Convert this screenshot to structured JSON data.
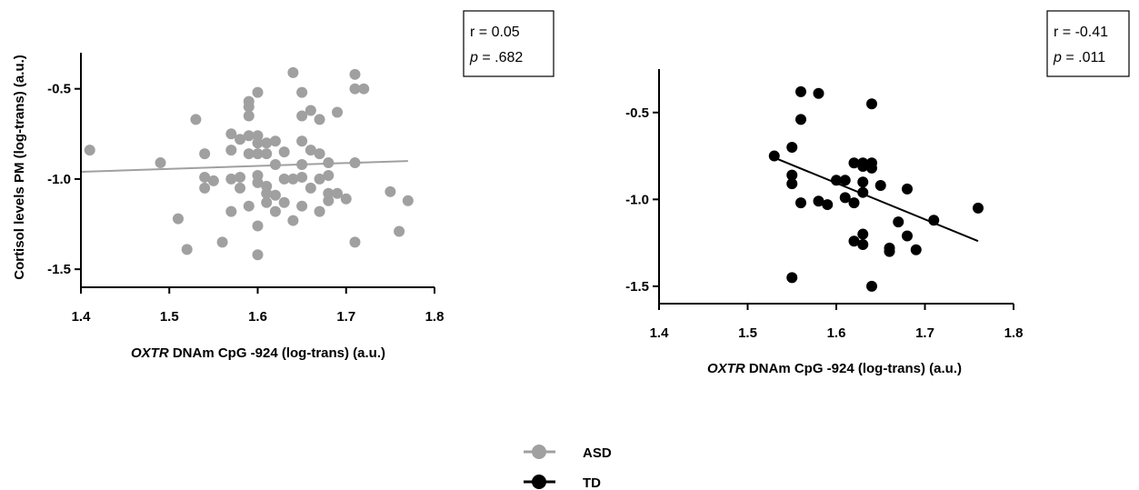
{
  "chart_data": [
    {
      "type": "scatter",
      "panel": "left",
      "xlabel_italic": "OXTR",
      "xlabel_rest": " DNAm CpG -924 (log-trans) (a.u.)",
      "ylabel": "Cortisol levels PM (log-trans) (a.u.)",
      "xlim": [
        1.4,
        1.8
      ],
      "ylim": [
        -1.6,
        -0.3
      ],
      "xticks": [
        "1.4",
        "1.5",
        "1.6",
        "1.7",
        "1.8"
      ],
      "yticks": [
        "-0.5",
        "-1.0",
        "-1.5"
      ],
      "ytick_values": [
        -0.5,
        -1.0,
        -1.5
      ],
      "xtick_values": [
        1.4,
        1.5,
        1.6,
        1.7,
        1.8
      ],
      "stats": {
        "r_text": "r = 0.05",
        "p_label": "p",
        "p_value": " = .682"
      },
      "series": [
        {
          "name": "ASD",
          "color": "#a0a0a0",
          "fit": {
            "x": [
              1.4,
              1.77
            ],
            "y": [
              -0.96,
              -0.9
            ]
          },
          "points": [
            [
              1.41,
              -0.84
            ],
            [
              1.49,
              -0.91
            ],
            [
              1.51,
              -1.22
            ],
            [
              1.52,
              -1.39
            ],
            [
              1.53,
              -0.67
            ],
            [
              1.54,
              -0.86
            ],
            [
              1.54,
              -0.99
            ],
            [
              1.54,
              -1.05
            ],
            [
              1.55,
              -1.01
            ],
            [
              1.56,
              -1.35
            ],
            [
              1.57,
              -0.75
            ],
            [
              1.57,
              -0.84
            ],
            [
              1.57,
              -1.0
            ],
            [
              1.57,
              -1.18
            ],
            [
              1.58,
              -0.78
            ],
            [
              1.58,
              -0.99
            ],
            [
              1.58,
              -1.05
            ],
            [
              1.59,
              -0.57
            ],
            [
              1.59,
              -0.6
            ],
            [
              1.59,
              -0.65
            ],
            [
              1.59,
              -0.76
            ],
            [
              1.59,
              -0.86
            ],
            [
              1.59,
              -1.15
            ],
            [
              1.6,
              -0.52
            ],
            [
              1.6,
              -0.76
            ],
            [
              1.6,
              -0.8
            ],
            [
              1.6,
              -0.86
            ],
            [
              1.6,
              -0.98
            ],
            [
              1.6,
              -1.02
            ],
            [
              1.6,
              -1.26
            ],
            [
              1.6,
              -1.42
            ],
            [
              1.61,
              -0.8
            ],
            [
              1.61,
              -0.86
            ],
            [
              1.61,
              -1.04
            ],
            [
              1.61,
              -1.08
            ],
            [
              1.61,
              -1.13
            ],
            [
              1.62,
              -0.79
            ],
            [
              1.62,
              -0.92
            ],
            [
              1.62,
              -1.09
            ],
            [
              1.62,
              -1.18
            ],
            [
              1.63,
              -0.85
            ],
            [
              1.63,
              -1.0
            ],
            [
              1.63,
              -1.13
            ],
            [
              1.64,
              -0.41
            ],
            [
              1.64,
              -1.0
            ],
            [
              1.64,
              -1.23
            ],
            [
              1.65,
              -0.52
            ],
            [
              1.65,
              -0.65
            ],
            [
              1.65,
              -0.79
            ],
            [
              1.65,
              -0.92
            ],
            [
              1.65,
              -0.99
            ],
            [
              1.65,
              -1.15
            ],
            [
              1.66,
              -0.62
            ],
            [
              1.66,
              -0.84
            ],
            [
              1.66,
              -1.05
            ],
            [
              1.67,
              -0.67
            ],
            [
              1.67,
              -0.86
            ],
            [
              1.67,
              -1.0
            ],
            [
              1.67,
              -1.18
            ],
            [
              1.68,
              -0.91
            ],
            [
              1.68,
              -0.98
            ],
            [
              1.68,
              -1.08
            ],
            [
              1.68,
              -1.12
            ],
            [
              1.69,
              -0.63
            ],
            [
              1.69,
              -1.08
            ],
            [
              1.7,
              -1.11
            ],
            [
              1.71,
              -0.42
            ],
            [
              1.71,
              -0.5
            ],
            [
              1.71,
              -0.91
            ],
            [
              1.71,
              -1.35
            ],
            [
              1.72,
              -0.5
            ],
            [
              1.75,
              -1.07
            ],
            [
              1.76,
              -1.29
            ],
            [
              1.77,
              -1.12
            ]
          ]
        }
      ]
    },
    {
      "type": "scatter",
      "panel": "right",
      "xlabel_italic": "OXTR",
      "xlabel_rest": " DNAm CpG -924 (log-trans) (a.u.)",
      "ylabel": "",
      "xlim": [
        1.4,
        1.8
      ],
      "ylim": [
        -1.6,
        -0.25
      ],
      "xticks": [
        "1.4",
        "1.5",
        "1.6",
        "1.7",
        "1.8"
      ],
      "yticks": [
        "-0.5",
        "-1.0",
        "-1.5"
      ],
      "ytick_values": [
        -0.5,
        -1.0,
        -1.5
      ],
      "xtick_values": [
        1.4,
        1.5,
        1.6,
        1.7,
        1.8
      ],
      "stats": {
        "r_text": "r = -0.41",
        "p_label": "p",
        "p_value": " = .011"
      },
      "series": [
        {
          "name": "TD",
          "color": "#000000",
          "fit": {
            "x": [
              1.53,
              1.76
            ],
            "y": [
              -0.76,
              -1.24
            ]
          },
          "points": [
            [
              1.53,
              -0.75
            ],
            [
              1.55,
              -0.7
            ],
            [
              1.55,
              -0.86
            ],
            [
              1.55,
              -0.91
            ],
            [
              1.55,
              -1.45
            ],
            [
              1.56,
              -0.38
            ],
            [
              1.56,
              -0.54
            ],
            [
              1.56,
              -1.02
            ],
            [
              1.58,
              -0.39
            ],
            [
              1.58,
              -1.01
            ],
            [
              1.59,
              -1.03
            ],
            [
              1.6,
              -0.89
            ],
            [
              1.61,
              -0.89
            ],
            [
              1.61,
              -0.99
            ],
            [
              1.62,
              -0.79
            ],
            [
              1.62,
              -1.02
            ],
            [
              1.62,
              -1.24
            ],
            [
              1.63,
              -0.79
            ],
            [
              1.63,
              -0.81
            ],
            [
              1.63,
              -0.9
            ],
            [
              1.63,
              -0.96
            ],
            [
              1.63,
              -1.2
            ],
            [
              1.63,
              -1.26
            ],
            [
              1.64,
              -0.45
            ],
            [
              1.64,
              -0.79
            ],
            [
              1.64,
              -0.82
            ],
            [
              1.64,
              -1.5
            ],
            [
              1.65,
              -0.92
            ],
            [
              1.66,
              -1.28
            ],
            [
              1.66,
              -1.3
            ],
            [
              1.67,
              -1.13
            ],
            [
              1.68,
              -0.94
            ],
            [
              1.68,
              -1.21
            ],
            [
              1.69,
              -1.29
            ],
            [
              1.71,
              -1.12
            ],
            [
              1.76,
              -1.05
            ]
          ]
        }
      ]
    }
  ],
  "legend": {
    "items": [
      {
        "label": "ASD",
        "color": "#a0a0a0"
      },
      {
        "label": "TD",
        "color": "#000000"
      }
    ]
  }
}
